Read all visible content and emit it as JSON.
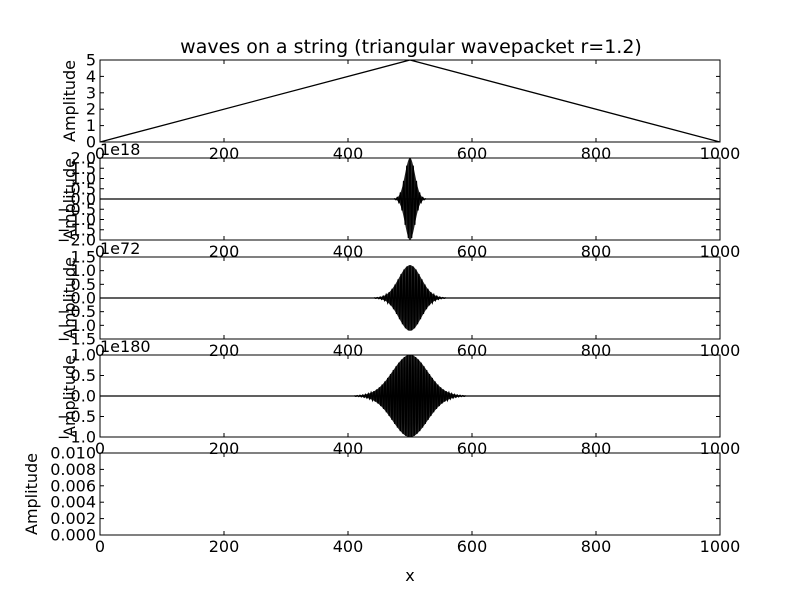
{
  "figure": {
    "title": "waves on a string (triangular wavepacket r=1.2)",
    "xlabel": "x",
    "ylabel": "Amplitude"
  },
  "chart_data": [
    {
      "type": "line",
      "title": "waves on a string (triangular wavepacket r=1.2)",
      "xlabel": "",
      "ylabel": "Amplitude",
      "xlim": [
        0,
        1000
      ],
      "ylim": [
        0,
        5
      ],
      "x_ticks": [
        "0",
        "200",
        "400",
        "600",
        "800",
        "1000"
      ],
      "y_ticks": [
        "0",
        "1",
        "2",
        "3",
        "4",
        "5"
      ],
      "offset_text": "",
      "series": [
        {
          "kind": "polyline",
          "color": "#000000",
          "points": [
            [
              0,
              0
            ],
            [
              500,
              5
            ],
            [
              1000,
              0
            ]
          ]
        }
      ]
    },
    {
      "type": "line",
      "xlabel": "",
      "ylabel": "Amplitude",
      "xlim": [
        0,
        1000
      ],
      "ylim": [
        -2.0,
        2.0
      ],
      "x_ticks": [
        "0",
        "200",
        "400",
        "600",
        "800",
        "1000"
      ],
      "y_ticks": [
        "−2.0",
        "−1.5",
        "−1.0",
        "−0.5",
        "0.0",
        "0.5",
        "1.0",
        "1.5",
        "2.0"
      ],
      "offset_text": "1e18",
      "series": [
        {
          "kind": "packet",
          "color": "#000000",
          "center": 500,
          "width": 8,
          "amplitude": 2.0,
          "oscillations": 10
        }
      ]
    },
    {
      "type": "line",
      "xlabel": "",
      "ylabel": "Amplitude",
      "xlim": [
        0,
        1000
      ],
      "ylim": [
        -1.5,
        1.5
      ],
      "x_ticks": [
        "0",
        "200",
        "400",
        "600",
        "800",
        "1000"
      ],
      "y_ticks": [
        "−1.5",
        "−1.0",
        "−0.5",
        "0.0",
        "0.5",
        "1.0",
        "1.5"
      ],
      "offset_text": "1e72",
      "series": [
        {
          "kind": "packet",
          "color": "#000000",
          "center": 500,
          "width": 18,
          "amplitude": 1.2,
          "oscillations": 24
        }
      ]
    },
    {
      "type": "line",
      "xlabel": "",
      "ylabel": "Amplitude",
      "xlim": [
        0,
        1000
      ],
      "ylim": [
        -1.0,
        1.0
      ],
      "x_ticks": [
        "0",
        "200",
        "400",
        "600",
        "800",
        "1000"
      ],
      "y_ticks": [
        "−1.0",
        "−0.5",
        "0.0",
        "0.5",
        "1.0"
      ],
      "offset_text": "1e180",
      "series": [
        {
          "kind": "packet",
          "color": "#000000",
          "center": 500,
          "width": 28,
          "amplitude": 1.0,
          "oscillations": 40
        }
      ]
    },
    {
      "type": "line",
      "xlabel": "x",
      "ylabel": "Amplitude",
      "xlim": [
        0,
        1000
      ],
      "ylim": [
        0,
        0.01
      ],
      "x_ticks": [
        "0",
        "200",
        "400",
        "600",
        "800",
        "1000"
      ],
      "y_ticks": [
        "0.000",
        "0.002",
        "0.004",
        "0.006",
        "0.008",
        "0.010"
      ],
      "offset_text": "",
      "series": []
    }
  ]
}
